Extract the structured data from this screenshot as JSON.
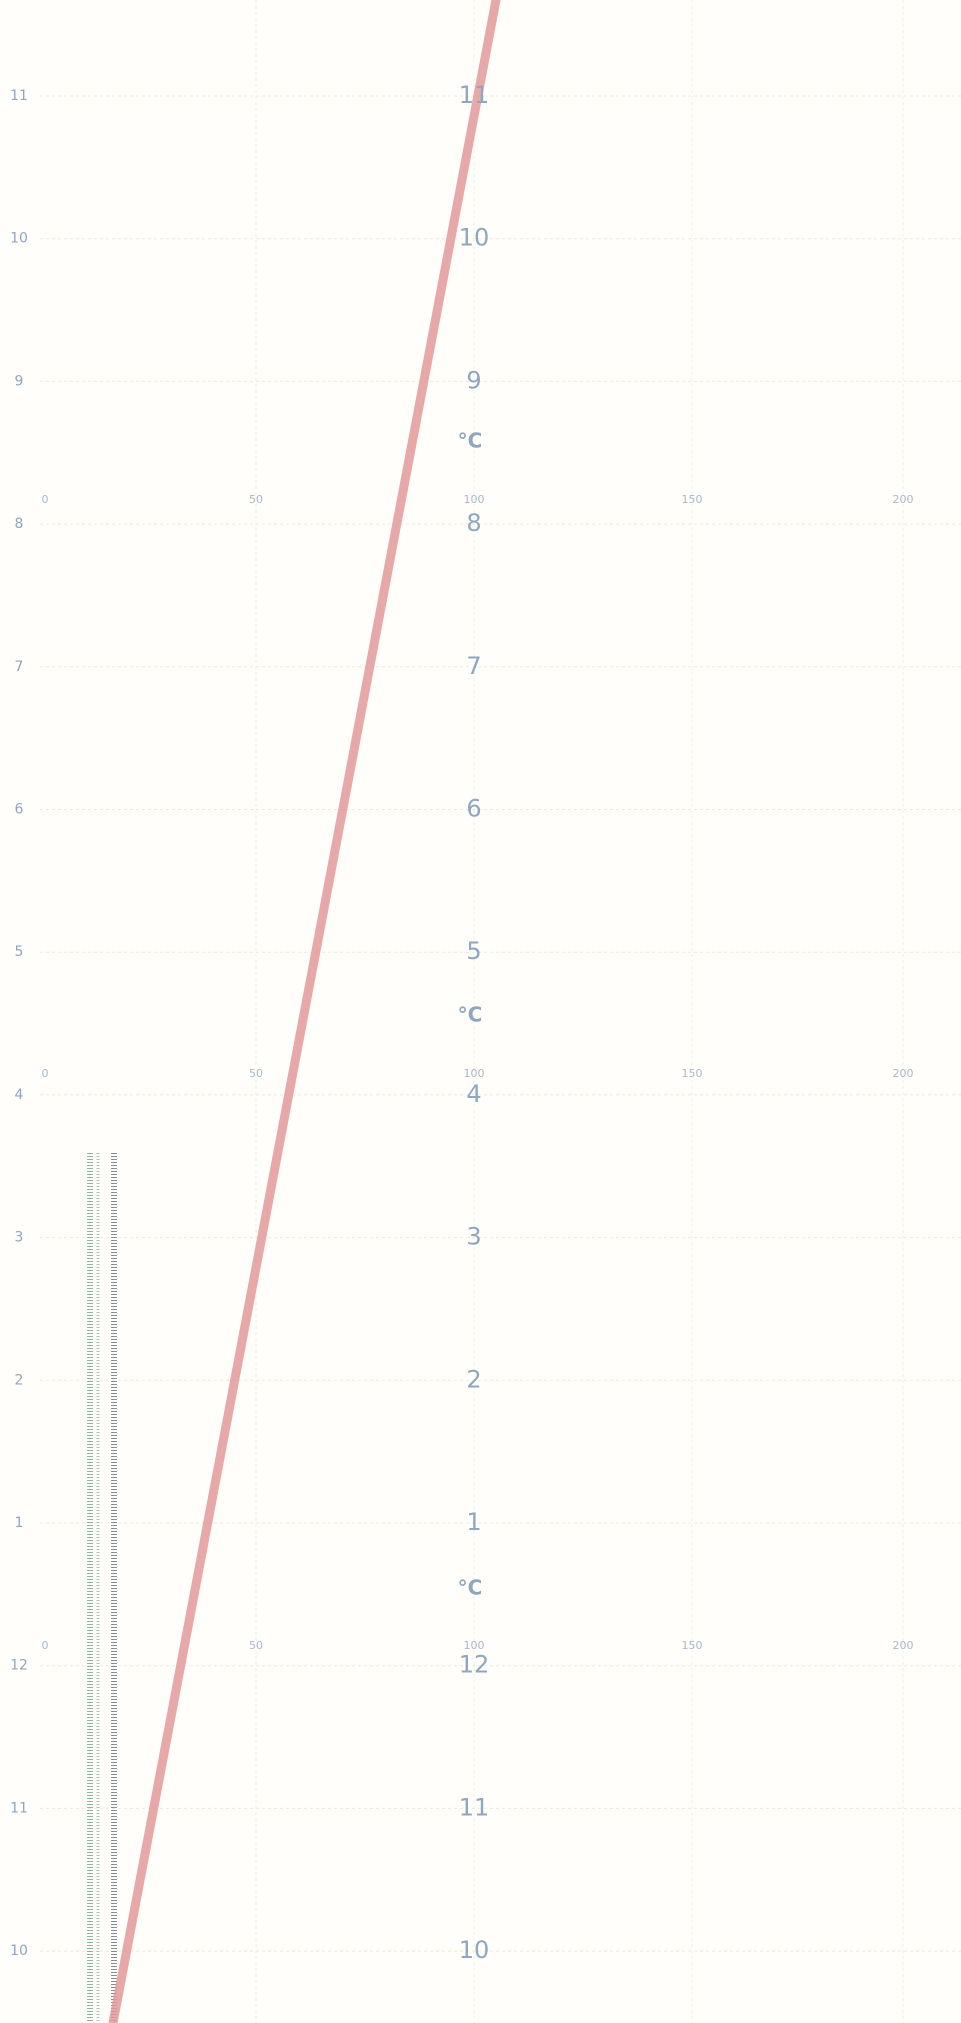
{
  "left_scale": [
    "11",
    "10",
    "9",
    "8",
    "7",
    "6",
    "5",
    "4",
    "3",
    "2",
    "1",
    "12",
    "11",
    "10"
  ],
  "center_scale": [
    "11",
    "10",
    "9",
    "8",
    "7",
    "6",
    "5",
    "4",
    "3",
    "2",
    "1",
    "12",
    "11",
    "10"
  ],
  "unit_labels": [
    "°C",
    "°C",
    "°C"
  ],
  "x_scales": [
    [
      "0",
      "50",
      "100",
      "150",
      "200"
    ],
    [
      "0",
      "50",
      "100",
      "150",
      "200"
    ],
    [
      "0",
      "50",
      "100",
      "150",
      "200"
    ]
  ]
}
